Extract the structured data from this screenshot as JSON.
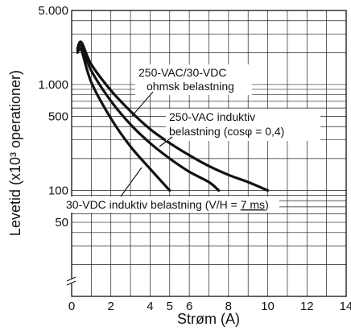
{
  "chart_data": {
    "type": "line",
    "title": "",
    "xlabel": "Strøm (A)",
    "ylabel": "Levetid (x10³ operationer)",
    "xlim": [
      0,
      14
    ],
    "ylim": [
      10,
      5000
    ],
    "yscale": "log",
    "x_ticks": [
      0,
      2,
      4,
      5,
      6,
      8,
      10,
      12,
      14
    ],
    "y_tick_labels": [
      {
        "value": 5000,
        "label": "5.000"
      },
      {
        "value": 1000,
        "label": "1.000"
      },
      {
        "value": 500,
        "label": "500"
      },
      {
        "value": 100,
        "label": "100"
      },
      {
        "value": 50,
        "label": "50"
      }
    ],
    "grid": true,
    "axis_break_marker": true,
    "series": [
      {
        "name": "250-VAC/30-VDC ohmsk belastning",
        "x": [
          0.3,
          0.5,
          1,
          2,
          3,
          4,
          5,
          6,
          7,
          8,
          9,
          10
        ],
        "y": [
          2200,
          2500,
          1550,
          880,
          560,
          380,
          280,
          215,
          170,
          140,
          120,
          100
        ]
      },
      {
        "name": "250-VAC induktiv belastning (cosφ = 0,4)",
        "x": [
          0.3,
          0.5,
          1,
          2,
          3,
          4,
          5,
          6,
          7,
          7.5
        ],
        "y": [
          2100,
          2300,
          1350,
          700,
          420,
          280,
          200,
          150,
          120,
          100
        ]
      },
      {
        "name": "30-VDC induktiv belastning (V/H = 7 ms)",
        "x": [
          0.3,
          0.5,
          1,
          2,
          3,
          4,
          5
        ],
        "y": [
          2000,
          2100,
          1050,
          480,
          260,
          160,
          100
        ]
      }
    ],
    "annotations": {
      "ohmic_line1": "250-VAC/30-VDC",
      "ohmic_line2": "ohmsk belastning",
      "inductive_line1": "250-VAC induktiv",
      "inductive_line2": "belastning (cosφ = 0,4)",
      "dc_text": "30-VDC induktiv belastning (V/H = ",
      "dc_value": "7 ms",
      "dc_close": ")"
    }
  }
}
